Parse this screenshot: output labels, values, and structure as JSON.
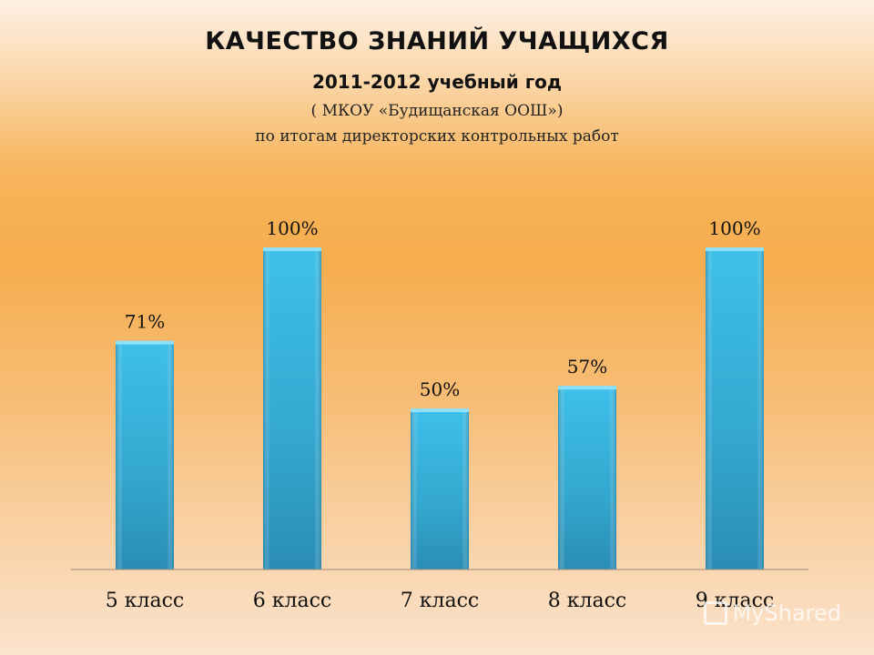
{
  "slide": {
    "title": "КАЧЕСТВО ЗНАНИЙ УЧАЩИХСЯ",
    "subtitle": "2011-2012 учебный год",
    "school": "( МКОУ «Будищанская ООШ»)",
    "note": "по итогам директорских контрольных работ",
    "watermark": "MyShared"
  },
  "chart_data": {
    "type": "bar",
    "categories": [
      "5 класс",
      "6 класс",
      "7 класс",
      "8 класс",
      "9 класс"
    ],
    "values": [
      71,
      100,
      50,
      57,
      100
    ],
    "data_labels": [
      "71%",
      "100%",
      "50%",
      "57%",
      "100%"
    ],
    "title": "",
    "xlabel": "",
    "ylabel": "",
    "ylim": [
      0,
      100
    ],
    "grid": false,
    "legend": "none",
    "bar_color": "#3bb6e0"
  }
}
